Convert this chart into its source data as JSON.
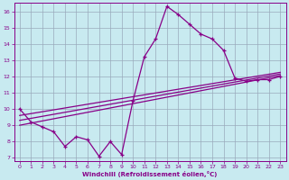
{
  "xlabel": "Windchill (Refroidissement éolien,°C)",
  "bg_color": "#c8eaf0",
  "line_color": "#880088",
  "grid_color": "#99aabb",
  "xlim": [
    -0.5,
    23.5
  ],
  "ylim": [
    6.8,
    16.5
  ],
  "xticks": [
    0,
    1,
    2,
    3,
    4,
    5,
    6,
    7,
    8,
    9,
    10,
    11,
    12,
    13,
    14,
    15,
    16,
    17,
    18,
    19,
    20,
    21,
    22,
    23
  ],
  "yticks": [
    7,
    8,
    9,
    10,
    11,
    12,
    13,
    14,
    15,
    16
  ],
  "main_x": [
    0,
    1,
    2,
    3,
    4,
    5,
    6,
    7,
    8,
    9,
    10,
    11,
    12,
    13,
    14,
    15,
    16,
    17,
    18,
    19,
    20,
    21,
    22,
    23
  ],
  "main_y": [
    10.0,
    9.2,
    8.9,
    8.6,
    7.7,
    8.3,
    8.1,
    7.1,
    8.0,
    7.2,
    10.5,
    13.2,
    14.3,
    16.3,
    15.8,
    15.2,
    14.6,
    14.3,
    13.6,
    11.9,
    11.7,
    11.8,
    11.8,
    12.0
  ],
  "line2_x": [
    0,
    23
  ],
  "line2_y": [
    9.0,
    12.05
  ],
  "line3_x": [
    0,
    23
  ],
  "line3_y": [
    9.3,
    12.15
  ],
  "line4_x": [
    0,
    23
  ],
  "line4_y": [
    9.6,
    12.25
  ]
}
